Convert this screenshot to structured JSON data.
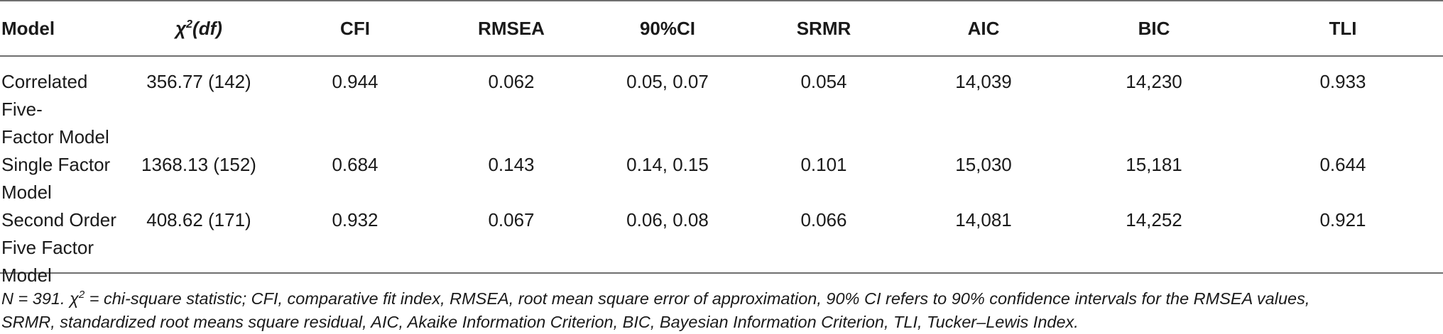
{
  "table": {
    "headers": {
      "model": "Model",
      "chi_symbol": "χ",
      "chi_sup": "2",
      "chi_df": "(df)",
      "cfi": "CFI",
      "rmsea": "RMSEA",
      "ci": "90%CI",
      "srmr": "SRMR",
      "aic": "AIC",
      "bic": "BIC",
      "tli": "TLI"
    },
    "rows": [
      {
        "model_line1": "Correlated Five-",
        "model_line2": "Factor Model",
        "model_line3": "",
        "chi2df": "356.77 (142)",
        "cfi": "0.944",
        "rmsea": "0.062",
        "ci": "0.05, 0.07",
        "srmr": "0.054",
        "aic": "14,039",
        "bic": "14,230",
        "tli": "0.933"
      },
      {
        "model_line1": "Single Factor",
        "model_line2": "Model",
        "model_line3": "",
        "chi2df": "1368.13 (152)",
        "cfi": "0.684",
        "rmsea": "0.143",
        "ci": "0.14, 0.15",
        "srmr": "0.101",
        "aic": "15,030",
        "bic": "15,181",
        "tli": "0.644"
      },
      {
        "model_line1": "Second Order",
        "model_line2": "Five Factor",
        "model_line3": "Model",
        "chi2df": "408.62 (171)",
        "cfi": "0.932",
        "rmsea": "0.067",
        "ci": "0.06, 0.08",
        "srmr": "0.066",
        "aic": "14,081",
        "bic": "14,252",
        "tli": "0.921"
      }
    ]
  },
  "note": {
    "part1": "N = 391. χ",
    "sup": "2",
    "part2": " = chi-square statistic; CFI, comparative fit index, RMSEA, root mean square error of approximation, 90% CI refers to 90% confidence intervals for the RMSEA values,",
    "line2": "SRMR, standardized root means square residual, AIC, Akaike Information Criterion, BIC, Bayesian Information Criterion, TLI, Tucker–Lewis Index."
  }
}
